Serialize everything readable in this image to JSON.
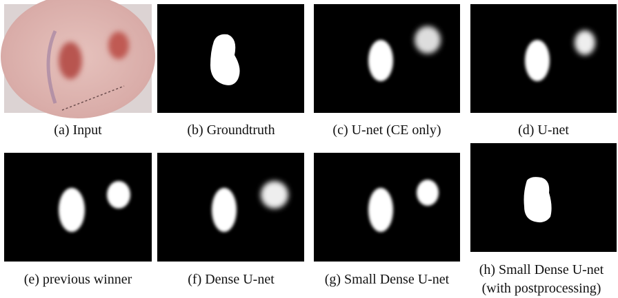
{
  "panels": [
    {
      "caption": [
        "(a) Input"
      ]
    },
    {
      "caption": [
        "(b) Groundtruth"
      ]
    },
    {
      "caption": [
        "(c) U-net (CE only)"
      ]
    },
    {
      "caption": [
        "(d) U-net"
      ]
    },
    {
      "caption": [
        "(e) previous winner"
      ]
    },
    {
      "caption": [
        "(f) Dense U-net"
      ]
    },
    {
      "caption": [
        "(g) Small Dense U-net"
      ]
    },
    {
      "caption": [
        "(h) Small Dense U-net",
        "(with postprocessing)"
      ]
    }
  ]
}
